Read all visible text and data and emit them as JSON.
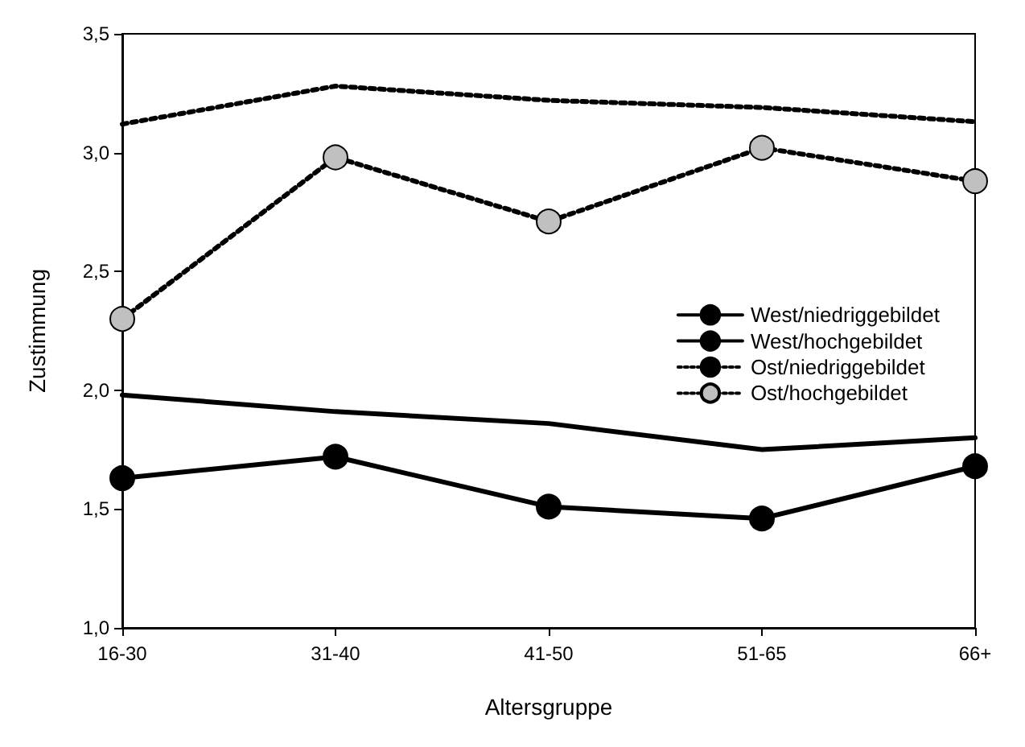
{
  "chart_data": {
    "type": "line",
    "xlabel": "Altersgruppe",
    "ylabel": "Zustimmung",
    "categories": [
      "16-30",
      "31-40",
      "41-50",
      "51-65",
      "66+"
    ],
    "series": [
      {
        "name": "West/niedriggebildet",
        "color": "#000000",
        "line_style": "solid",
        "marker": "none",
        "values": [
          1.98,
          1.91,
          1.86,
          1.75,
          1.8
        ]
      },
      {
        "name": "West/hochgebildet",
        "color": "#000000",
        "line_style": "solid",
        "marker": "circle",
        "values": [
          1.63,
          1.72,
          1.51,
          1.46,
          1.68
        ]
      },
      {
        "name": "Ost/niedriggebildet",
        "color": "#000000",
        "line_style": "dotted",
        "marker": "none",
        "values": [
          3.12,
          3.28,
          3.22,
          3.19,
          3.13
        ]
      },
      {
        "name": "Ost/hochgebildet",
        "color": "#000000",
        "colors": [
          "#c0c0c0",
          "#c0c0c0",
          "#c0c0c0",
          "#c0c0c0",
          "#c0c0c0"
        ],
        "line_style": "dotted",
        "marker": "circle",
        "values": [
          2.3,
          2.98,
          2.71,
          3.02,
          2.88
        ]
      }
    ],
    "ylim": [
      1,
      3.5
    ],
    "yticks": [
      {
        "value": 1,
        "label": "1,0"
      },
      {
        "value": 1.5,
        "label": "1,5"
      },
      {
        "value": 2,
        "label": "2,0"
      },
      {
        "value": 2.5,
        "label": "2,5"
      },
      {
        "value": 3,
        "label": "3,0"
      },
      {
        "value": 3.5,
        "label": "3,5"
      }
    ],
    "grid": false,
    "legend": "right"
  }
}
